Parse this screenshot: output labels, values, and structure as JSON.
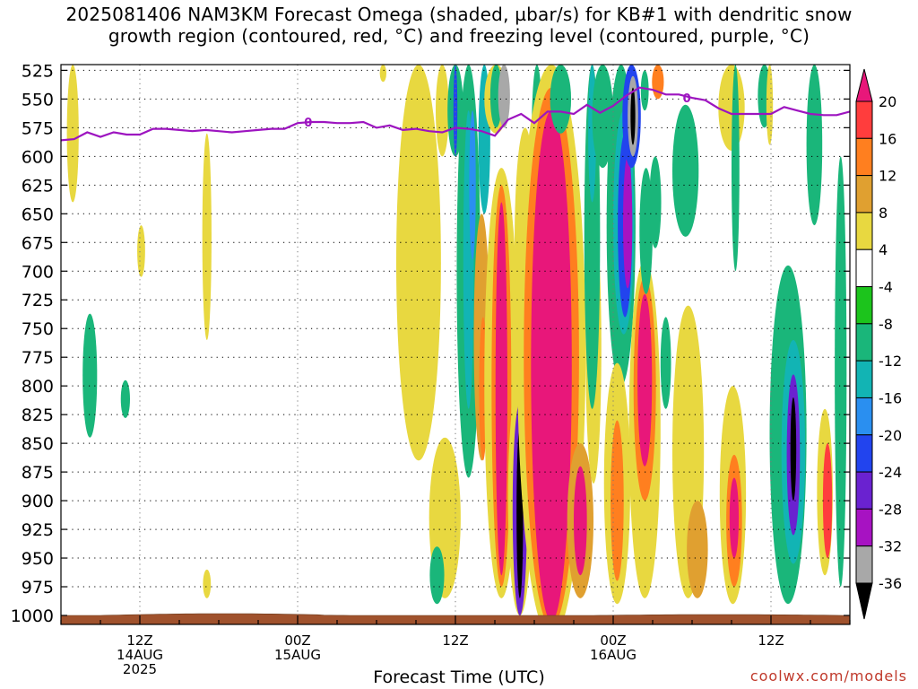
{
  "title_line1": "2025081406 NAM3KM Forecast Omega (shaded, µbar/s) for KB#1 with dendritic snow",
  "title_line2": "growth region (contoured, red, °C) and freezing level (contoured, purple, °C)",
  "credit": "coolwx.com/models",
  "chart_data": {
    "type": "heatmap",
    "xlabel": "Forecast Time (UTC)",
    "ylabel": "",
    "x_range_hours": [
      0,
      60
    ],
    "y_range_mb": [
      1000,
      520
    ],
    "x_ticks": [
      {
        "hour": 6,
        "lines": [
          "12Z",
          "14AUG",
          "2025"
        ]
      },
      {
        "hour": 18,
        "lines": [
          "00Z",
          "15AUG"
        ]
      },
      {
        "hour": 30,
        "lines": [
          "12Z"
        ]
      },
      {
        "hour": 42,
        "lines": [
          "00Z",
          "16AUG"
        ]
      },
      {
        "hour": 54,
        "lines": [
          "12Z"
        ]
      }
    ],
    "y_ticks": [
      525,
      550,
      575,
      600,
      625,
      650,
      675,
      700,
      725,
      750,
      775,
      800,
      825,
      850,
      875,
      900,
      925,
      950,
      975,
      1000
    ],
    "grid": true,
    "colorbar": {
      "labels": [
        "20",
        "16",
        "12",
        "8",
        "4",
        "-4",
        "-8",
        "-12",
        "-16",
        "-20",
        "-24",
        "-28",
        "-32",
        "-36"
      ],
      "colors": [
        "#e8177a",
        "#ff3d3d",
        "#ff7f1f",
        "#e0a030",
        "#e8d840",
        "#ffffff",
        "#1cc41c",
        "#1ab67a",
        "#12b4b4",
        "#2a8ff0",
        "#2244ee",
        "#6a22d0",
        "#a712c2",
        "#a8a8a8",
        "#000000"
      ]
    },
    "freezing_level": {
      "label": "0",
      "color": "#9d14c0",
      "points": [
        [
          0,
          586
        ],
        [
          1,
          585
        ],
        [
          2,
          579
        ],
        [
          3,
          583
        ],
        [
          4,
          579
        ],
        [
          5,
          581
        ],
        [
          6,
          581
        ],
        [
          7,
          576
        ],
        [
          8,
          576
        ],
        [
          9,
          577
        ],
        [
          10,
          578
        ],
        [
          11,
          577
        ],
        [
          12,
          578
        ],
        [
          13,
          579
        ],
        [
          14,
          578
        ],
        [
          15,
          577
        ],
        [
          16,
          576
        ],
        [
          17,
          576
        ],
        [
          18,
          571
        ],
        [
          19,
          570
        ],
        [
          20,
          570
        ],
        [
          21,
          571
        ],
        [
          22,
          571
        ],
        [
          23,
          570
        ],
        [
          24,
          575
        ],
        [
          25,
          573
        ],
        [
          26,
          577
        ],
        [
          27,
          576
        ],
        [
          28,
          578
        ],
        [
          29,
          579
        ],
        [
          30,
          575
        ],
        [
          31,
          576
        ],
        [
          32,
          578
        ],
        [
          33,
          582
        ],
        [
          34,
          568
        ],
        [
          35,
          563
        ],
        [
          36,
          571
        ],
        [
          37,
          561
        ],
        [
          38,
          561
        ],
        [
          39,
          563
        ],
        [
          40,
          555
        ],
        [
          41,
          562
        ],
        [
          42,
          556
        ],
        [
          43,
          547
        ],
        [
          44,
          540
        ],
        [
          45,
          542
        ],
        [
          46,
          546
        ],
        [
          47,
          546
        ],
        [
          48,
          549
        ],
        [
          49,
          551
        ],
        [
          50,
          558
        ],
        [
          51,
          563
        ],
        [
          52,
          563
        ],
        [
          53,
          563
        ],
        [
          54,
          563
        ],
        [
          55,
          557
        ],
        [
          56,
          560
        ],
        [
          57,
          563
        ],
        [
          58,
          564
        ],
        [
          59,
          564
        ],
        [
          60,
          561
        ]
      ]
    },
    "omega_features": [
      {
        "x": 0.9,
        "p_top": 520,
        "p_bot": 640,
        "w": 0.45,
        "v": 6
      },
      {
        "x": 2.2,
        "p_top": 737,
        "p_bot": 845,
        "w": 0.55,
        "v": -8
      },
      {
        "x": 4.9,
        "p_top": 795,
        "p_bot": 828,
        "w": 0.35,
        "v": -8
      },
      {
        "x": 6.1,
        "p_top": 660,
        "p_bot": 705,
        "w": 0.3,
        "v": 6
      },
      {
        "x": 11.1,
        "p_top": 580,
        "p_bot": 760,
        "w": 0.35,
        "v": 6
      },
      {
        "x": 11.1,
        "p_top": 960,
        "p_bot": 985,
        "w": 0.3,
        "v": 6
      },
      {
        "x": 24.5,
        "p_top": 520,
        "p_bot": 535,
        "w": 0.25,
        "v": 6
      },
      {
        "x": 27.2,
        "p_top": 520,
        "p_bot": 865,
        "w": 1.7,
        "v": 6
      },
      {
        "x": 29.2,
        "p_top": 845,
        "p_bot": 985,
        "w": 1.2,
        "v": 6
      },
      {
        "x": 28.6,
        "p_top": 940,
        "p_bot": 990,
        "w": 0.55,
        "v": -10
      },
      {
        "x": 29.0,
        "p_top": 520,
        "p_bot": 600,
        "w": 0.5,
        "v": 6
      },
      {
        "x": 30.0,
        "p_top": 520,
        "p_bot": 600,
        "w": 0.6,
        "v": -10
      },
      {
        "x": 30.0,
        "p_top": 520,
        "p_bot": 600,
        "w": 0.15,
        "v": -20
      },
      {
        "x": 31.0,
        "p_top": 520,
        "p_bot": 880,
        "w": 0.9,
        "v": -9
      },
      {
        "x": 31.0,
        "p_top": 560,
        "p_bot": 820,
        "w": 0.4,
        "v": -12
      },
      {
        "x": 31.3,
        "p_top": 560,
        "p_bot": 690,
        "w": 0.25,
        "v": -18
      },
      {
        "x": 32.2,
        "p_top": 520,
        "p_bot": 650,
        "w": 0.45,
        "v": -12
      },
      {
        "x": 33.1,
        "p_top": 520,
        "p_bot": 580,
        "w": 0.9,
        "v": 6
      },
      {
        "x": 33.1,
        "p_top": 520,
        "p_bot": 575,
        "w": 0.45,
        "v": -8
      },
      {
        "x": 33.7,
        "p_top": 520,
        "p_bot": 575,
        "w": 0.45,
        "v": -34
      },
      {
        "x": 32.0,
        "p_top": 650,
        "p_bot": 865,
        "w": 0.6,
        "v": 8
      },
      {
        "x": 32.1,
        "p_top": 740,
        "p_bot": 865,
        "w": 0.3,
        "v": 14
      },
      {
        "x": 33.5,
        "p_top": 610,
        "p_bot": 985,
        "w": 1.3,
        "v": 6
      },
      {
        "x": 33.5,
        "p_top": 625,
        "p_bot": 975,
        "w": 0.75,
        "v": 12
      },
      {
        "x": 33.5,
        "p_top": 640,
        "p_bot": 965,
        "w": 0.45,
        "v": 20
      },
      {
        "x": 34.9,
        "p_top": 795,
        "p_bot": 1000,
        "w": 0.9,
        "v": 6
      },
      {
        "x": 34.9,
        "p_top": 815,
        "p_bot": 1000,
        "w": 0.55,
        "v": -24
      },
      {
        "x": 34.9,
        "p_top": 835,
        "p_bot": 985,
        "w": 0.25,
        "v": -36
      },
      {
        "x": 35.3,
        "p_top": 575,
        "p_bot": 775,
        "w": 0.8,
        "v": 6
      },
      {
        "x": 36.2,
        "p_top": 520,
        "p_bot": 640,
        "w": 0.4,
        "v": -8
      },
      {
        "x": 37.3,
        "p_top": 520,
        "p_bot": 1020,
        "w": 2.6,
        "v": 6
      },
      {
        "x": 37.3,
        "p_top": 540,
        "p_bot": 1010,
        "w": 2.1,
        "v": 12
      },
      {
        "x": 37.3,
        "p_top": 560,
        "p_bot": 1005,
        "w": 1.55,
        "v": 20
      },
      {
        "x": 38.0,
        "p_top": 520,
        "p_bot": 580,
        "w": 0.8,
        "v": -8
      },
      {
        "x": 39.5,
        "p_top": 850,
        "p_bot": 985,
        "w": 1.0,
        "v": 10
      },
      {
        "x": 39.5,
        "p_top": 870,
        "p_bot": 965,
        "w": 0.5,
        "v": 20
      },
      {
        "x": 40.5,
        "p_top": 650,
        "p_bot": 885,
        "w": 0.6,
        "v": 6
      },
      {
        "x": 40.4,
        "p_top": 520,
        "p_bot": 820,
        "w": 0.6,
        "v": -8
      },
      {
        "x": 40.4,
        "p_top": 520,
        "p_bot": 640,
        "w": 0.3,
        "v": -12
      },
      {
        "x": 41.2,
        "p_top": 520,
        "p_bot": 610,
        "w": 0.8,
        "v": -8
      },
      {
        "x": 42.6,
        "p_top": 520,
        "p_bot": 800,
        "w": 1.1,
        "v": -8
      },
      {
        "x": 42.8,
        "p_top": 560,
        "p_bot": 755,
        "w": 0.8,
        "v": -14
      },
      {
        "x": 42.9,
        "p_top": 580,
        "p_bot": 740,
        "w": 0.55,
        "v": -22
      },
      {
        "x": 43.1,
        "p_top": 600,
        "p_bot": 715,
        "w": 0.35,
        "v": -30
      },
      {
        "x": 43.4,
        "p_top": 520,
        "p_bot": 610,
        "w": 0.7,
        "v": -22
      },
      {
        "x": 43.5,
        "p_top": 530,
        "p_bot": 600,
        "w": 0.4,
        "v": -32
      },
      {
        "x": 43.5,
        "p_top": 540,
        "p_bot": 590,
        "w": 0.18,
        "v": -36
      },
      {
        "x": 42.3,
        "p_top": 780,
        "p_bot": 990,
        "w": 1.0,
        "v": 6
      },
      {
        "x": 42.3,
        "p_top": 830,
        "p_bot": 970,
        "w": 0.5,
        "v": 12
      },
      {
        "x": 44.4,
        "p_top": 690,
        "p_bot": 985,
        "w": 1.2,
        "v": 6
      },
      {
        "x": 44.4,
        "p_top": 705,
        "p_bot": 900,
        "w": 0.85,
        "v": 12
      },
      {
        "x": 44.4,
        "p_top": 720,
        "p_bot": 870,
        "w": 0.55,
        "v": 20
      },
      {
        "x": 44.5,
        "p_top": 610,
        "p_bot": 720,
        "w": 0.5,
        "v": -8
      },
      {
        "x": 44.4,
        "p_top": 525,
        "p_bot": 560,
        "w": 0.3,
        "v": -8
      },
      {
        "x": 45.2,
        "p_top": 600,
        "p_bot": 680,
        "w": 0.45,
        "v": -8
      },
      {
        "x": 45.4,
        "p_top": 520,
        "p_bot": 550,
        "w": 0.45,
        "v": 14
      },
      {
        "x": 46.0,
        "p_top": 740,
        "p_bot": 820,
        "w": 0.4,
        "v": -8
      },
      {
        "x": 47.5,
        "p_top": 555,
        "p_bot": 670,
        "w": 1.0,
        "v": -8
      },
      {
        "x": 47.7,
        "p_top": 730,
        "p_bot": 985,
        "w": 1.2,
        "v": 6
      },
      {
        "x": 48.4,
        "p_top": 900,
        "p_bot": 985,
        "w": 0.8,
        "v": 10
      },
      {
        "x": 51.0,
        "p_top": 520,
        "p_bot": 595,
        "w": 1.0,
        "v": 6
      },
      {
        "x": 51.1,
        "p_top": 800,
        "p_bot": 990,
        "w": 1.0,
        "v": 6
      },
      {
        "x": 51.2,
        "p_top": 860,
        "p_bot": 975,
        "w": 0.6,
        "v": 12
      },
      {
        "x": 51.2,
        "p_top": 880,
        "p_bot": 950,
        "w": 0.35,
        "v": 20
      },
      {
        "x": 51.3,
        "p_top": 520,
        "p_bot": 700,
        "w": 0.3,
        "v": -8
      },
      {
        "x": 53.5,
        "p_top": 520,
        "p_bot": 575,
        "w": 0.5,
        "v": -8
      },
      {
        "x": 53.9,
        "p_top": 520,
        "p_bot": 590,
        "w": 0.25,
        "v": 6
      },
      {
        "x": 55.3,
        "p_top": 695,
        "p_bot": 990,
        "w": 1.4,
        "v": -8
      },
      {
        "x": 55.7,
        "p_top": 760,
        "p_bot": 955,
        "w": 0.9,
        "v": -14
      },
      {
        "x": 55.7,
        "p_top": 790,
        "p_bot": 930,
        "w": 0.5,
        "v": -24
      },
      {
        "x": 55.7,
        "p_top": 810,
        "p_bot": 900,
        "w": 0.22,
        "v": -36
      },
      {
        "x": 57.3,
        "p_top": 520,
        "p_bot": 660,
        "w": 0.6,
        "v": -8
      },
      {
        "x": 58.1,
        "p_top": 820,
        "p_bot": 965,
        "w": 0.6,
        "v": 6
      },
      {
        "x": 58.3,
        "p_top": 850,
        "p_bot": 950,
        "w": 0.35,
        "v": 16
      },
      {
        "x": 59.3,
        "p_top": 600,
        "p_bot": 975,
        "w": 0.45,
        "v": -8
      }
    ]
  }
}
